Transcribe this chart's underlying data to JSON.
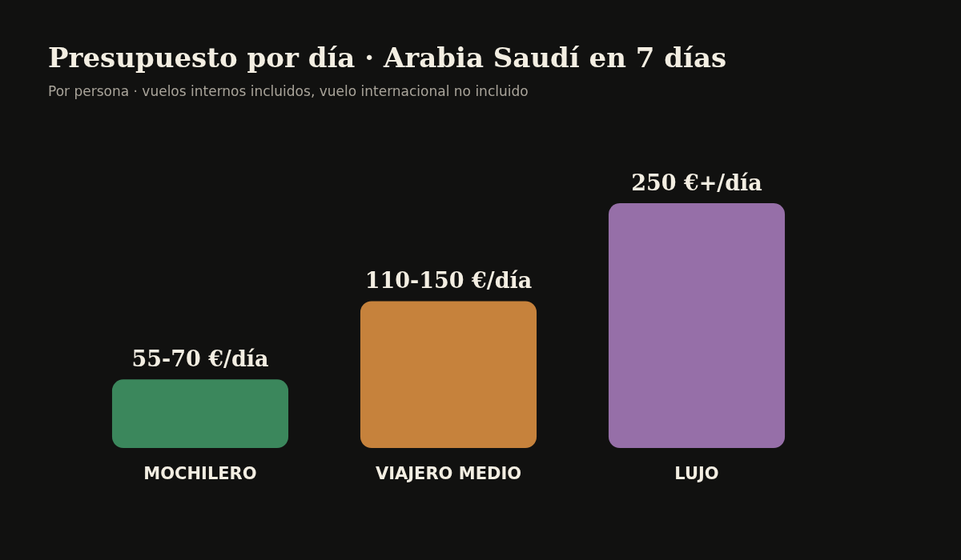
{
  "chart_data": {
    "type": "bar",
    "title": "Presupuesto por día · Arabia Saudí en 7 días",
    "subtitle": "Por persona · vuelos internos incluidos, vuelo internacional no incluido",
    "categories": [
      "MOCHILERO",
      "VIAJERO MEDIO",
      "LUJO"
    ],
    "values": [
      70,
      150,
      250
    ],
    "colors": [
      "#3b875c",
      "#c6823c",
      "#966fa8"
    ],
    "value_labels": [
      "55-70 €/día",
      "110-150 €/día",
      "250 €+/día"
    ]
  }
}
